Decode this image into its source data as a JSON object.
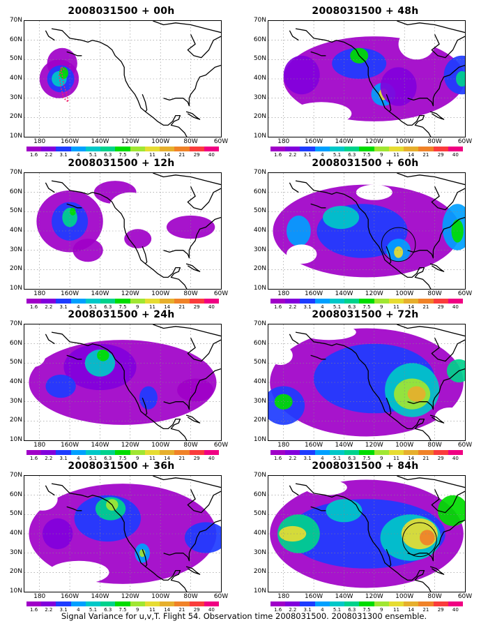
{
  "panels": [
    {
      "title": "2008031500 + 00h"
    },
    {
      "title": "2008031500 + 48h"
    },
    {
      "title": "2008031500 + 12h"
    },
    {
      "title": "2008031500 + 60h"
    },
    {
      "title": "2008031500 + 24h"
    },
    {
      "title": "2008031500 + 72h"
    },
    {
      "title": "2008031500 + 36h"
    },
    {
      "title": "2008031500 + 84h"
    }
  ],
  "lat_labels": [
    "70N",
    "60N",
    "50N",
    "40N",
    "30N",
    "20N",
    "10N"
  ],
  "lon_labels": [
    "180",
    "160W",
    "140W",
    "120W",
    "100W",
    "80W",
    "60W"
  ],
  "colorbar": {
    "levels": [
      "1.6",
      "2.2",
      "3.1",
      "4",
      "5.1",
      "6.3",
      "7.5",
      "9",
      "11",
      "14",
      "21",
      "29",
      "40"
    ],
    "colors": [
      "#a000c8",
      "#8200dc",
      "#1e3cff",
      "#00a0ff",
      "#00c8c8",
      "#00d28c",
      "#00dc00",
      "#a0e632",
      "#e6dc32",
      "#e6af2d",
      "#f08228",
      "#fa3c3c",
      "#f00082"
    ]
  },
  "caption": "Signal Variance for u,v,T. Flight 54. Observation time 2008031500. 2008031300 ensemble."
}
